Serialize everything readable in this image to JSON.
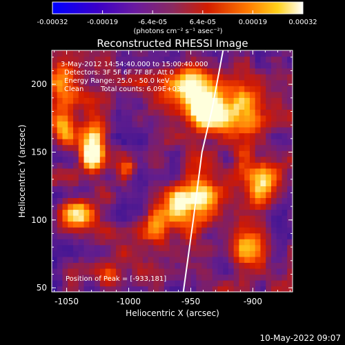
{
  "chart_data": {
    "type": "heatmap",
    "title": "Reconstructed RHESSI Image",
    "xlabel": "Heliocentric X (arcsec)",
    "ylabel": "Heliocentric Y (arcsec)",
    "xlim": [
      -1062,
      -868
    ],
    "ylim": [
      47,
      225
    ],
    "xticks": [
      -1050,
      -1000,
      -950,
      -900
    ],
    "xtick_labels": [
      "-1050",
      "-1000",
      "-950",
      "-900"
    ],
    "yticks": [
      50,
      100,
      150,
      200
    ],
    "ytick_labels": [
      "50",
      "100",
      "150",
      "200"
    ],
    "colorbar": {
      "range": [
        -0.00032,
        0.00032
      ],
      "tick_labels": [
        "-0.00032",
        "-0.00019",
        "-6.4e-05",
        "6.4e-05",
        "0.00019",
        "0.00032"
      ],
      "units": "(photons cm⁻² s⁻¹ asec⁻²)",
      "colors": [
        "#0000ff",
        "#ffa000",
        "#ffffff"
      ]
    },
    "annotations": {
      "time_range": "3-May-2012 14:54:40.000 to 15:00:40.000",
      "detectors": "Detectors: 3F 5F 6F 7F 8F, Att 0",
      "energy_range": "Energy Range: 25.0 - 50.0 keV",
      "clean": "Clean",
      "total_counts": "Total counts: 6.09E+03",
      "peak": "Position of Peak = [-933,181]"
    },
    "peak": {
      "x": -933,
      "y": 181
    },
    "limb_curve": [
      [
        -956,
        47
      ],
      [
        -948,
        100
      ],
      [
        -941,
        150
      ],
      [
        -933,
        181
      ],
      [
        -924,
        225
      ]
    ],
    "hotspots": [
      {
        "x": -933,
        "y": 181,
        "sigma_x": 10,
        "sigma_y": 10,
        "amp": 1.0
      },
      {
        "x": -948,
        "y": 200,
        "sigma_x": 18,
        "sigma_y": 12,
        "amp": 0.55
      },
      {
        "x": -1028,
        "y": 155,
        "sigma_x": 7,
        "sigma_y": 14,
        "amp": 0.85
      },
      {
        "x": -1040,
        "y": 105,
        "sigma_x": 12,
        "sigma_y": 8,
        "amp": 0.6
      },
      {
        "x": -1050,
        "y": 205,
        "sigma_x": 9,
        "sigma_y": 12,
        "amp": 0.5
      },
      {
        "x": -1052,
        "y": 170,
        "sigma_x": 7,
        "sigma_y": 9,
        "amp": 0.5
      },
      {
        "x": -958,
        "y": 110,
        "sigma_x": 8,
        "sigma_y": 10,
        "amp": 0.6
      },
      {
        "x": -940,
        "y": 115,
        "sigma_x": 10,
        "sigma_y": 15,
        "amp": 0.55
      },
      {
        "x": -905,
        "y": 180,
        "sigma_x": 10,
        "sigma_y": 18,
        "amp": 0.5
      },
      {
        "x": -890,
        "y": 130,
        "sigma_x": 9,
        "sigma_y": 12,
        "amp": 0.5
      },
      {
        "x": -900,
        "y": 80,
        "sigma_x": 10,
        "sigma_y": 10,
        "amp": 0.4
      },
      {
        "x": -975,
        "y": 95,
        "sigma_x": 8,
        "sigma_y": 8,
        "amp": 0.4
      },
      {
        "x": -1015,
        "y": 60,
        "sigma_x": 8,
        "sigma_y": 6,
        "amp": 0.35
      },
      {
        "x": -1000,
        "y": 140,
        "sigma_x": 5,
        "sigma_y": 5,
        "amp": 0.3
      }
    ]
  },
  "footer": {
    "timestamp": "10-May-2022 09:07"
  }
}
